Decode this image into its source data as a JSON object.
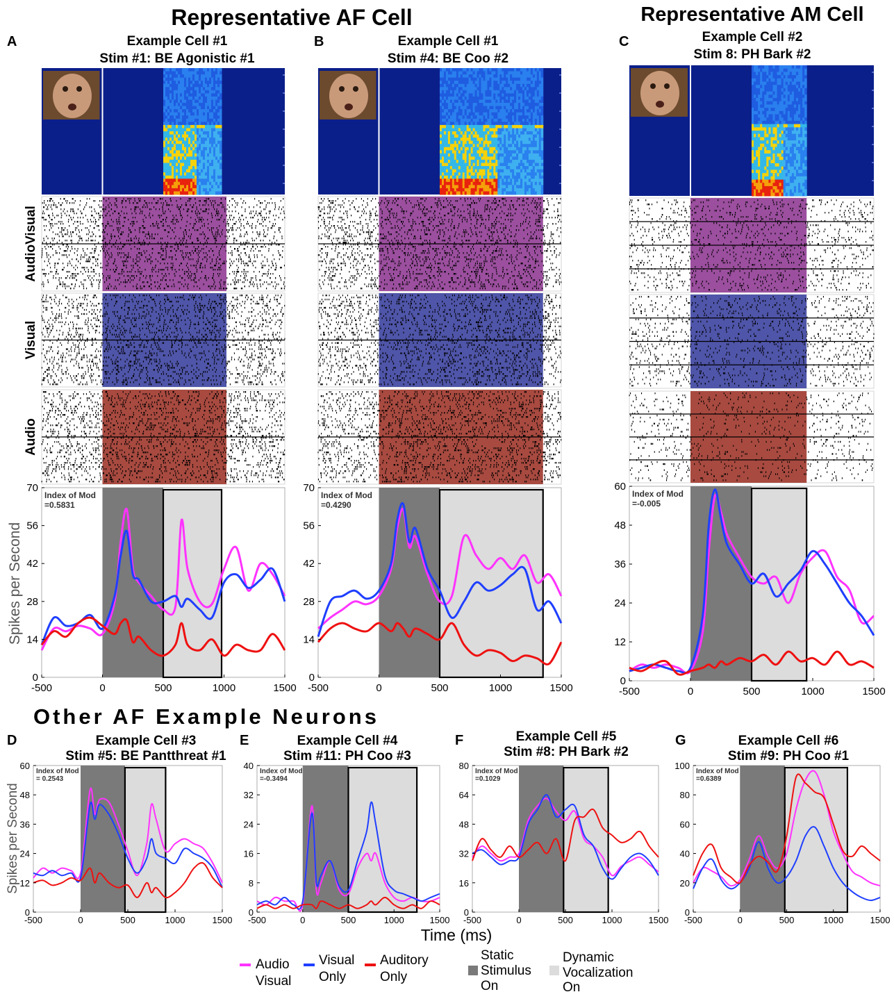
{
  "headers": {
    "af": "Representative AF Cell",
    "am": "Representative AM Cell",
    "other": "Other AF Example Neurons"
  },
  "row_labels": [
    "AudioVisual",
    "Visual",
    "Audio"
  ],
  "ylabel": "Spikes per Second",
  "xlabel": "Time (ms)",
  "colors": {
    "audiovisual": "#ff33ff",
    "visual": "#1f3fff",
    "audio": "#ee1111",
    "static": "#7a7a7a",
    "dynamic": "#dcdcdc",
    "spectro_bg": "#0b1f8a",
    "raster_av": "#9b4f9e",
    "raster_v": "#4f55a8",
    "raster_a": "#a84a40"
  },
  "legend": {
    "audiovisual": [
      "Audio",
      "Visual"
    ],
    "visual": [
      "Visual",
      "Only"
    ],
    "audio": [
      "Auditory",
      "Only"
    ],
    "static": [
      "Static",
      "Stimulus",
      "On"
    ],
    "dynamic": [
      "Dynamic",
      "Vocalization",
      "On"
    ]
  },
  "chart_data": [
    {
      "panel": "A",
      "type": "line",
      "title": [
        "Example Cell #1",
        "Stim #1: BE Agonistic #1"
      ],
      "index_label": "Index of Mod",
      "index_value": "=0.5831",
      "xlim": [
        -500,
        1500
      ],
      "ylim": [
        0,
        70
      ],
      "xticks": [
        -500,
        0,
        500,
        1000,
        1500
      ],
      "yticks": [
        0,
        14,
        28,
        42,
        56,
        70
      ],
      "static_on": [
        0,
        500
      ],
      "dynamic_on": [
        500,
        980
      ],
      "x": [
        -500,
        -400,
        -300,
        -200,
        -100,
        0,
        100,
        150,
        200,
        250,
        300,
        400,
        500,
        600,
        650,
        700,
        800,
        900,
        1000,
        1100,
        1200,
        1300,
        1400,
        1500
      ],
      "series": [
        {
          "key": "audiovisual",
          "values": [
            10,
            18,
            17,
            19,
            18,
            16,
            28,
            50,
            62,
            40,
            35,
            30,
            25,
            26,
            58,
            40,
            28,
            27,
            40,
            48,
            32,
            42,
            38,
            30
          ]
        },
        {
          "key": "visual",
          "values": [
            12,
            22,
            19,
            20,
            23,
            18,
            30,
            45,
            54,
            38,
            36,
            28,
            28,
            30,
            26,
            29,
            25,
            22,
            35,
            38,
            33,
            36,
            40,
            28
          ]
        },
        {
          "key": "audio",
          "values": [
            12,
            17,
            15,
            20,
            22,
            19,
            16,
            20,
            21,
            13,
            15,
            10,
            8,
            12,
            20,
            12,
            10,
            14,
            8,
            12,
            10,
            10,
            16,
            10
          ]
        }
      ]
    },
    {
      "panel": "B",
      "type": "line",
      "title": [
        "Example Cell #1",
        "Stim #4: BE Coo #2"
      ],
      "index_label": "Index of Mod",
      "index_value": "=0.4290",
      "xlim": [
        -500,
        1500
      ],
      "ylim": [
        0,
        70
      ],
      "xticks": [
        -500,
        0,
        500,
        1000,
        1500
      ],
      "yticks": [
        0,
        14,
        28,
        42,
        56,
        70
      ],
      "static_on": [
        0,
        500
      ],
      "dynamic_on": [
        500,
        1350
      ],
      "x": [
        -500,
        -400,
        -300,
        -200,
        -100,
        0,
        100,
        150,
        200,
        250,
        300,
        400,
        500,
        600,
        700,
        800,
        900,
        1000,
        1100,
        1200,
        1300,
        1400,
        1500
      ],
      "series": [
        {
          "key": "audiovisual",
          "values": [
            18,
            22,
            25,
            28,
            27,
            30,
            40,
            55,
            62,
            48,
            52,
            38,
            28,
            30,
            52,
            45,
            40,
            44,
            40,
            45,
            35,
            38,
            30
          ]
        },
        {
          "key": "visual",
          "values": [
            15,
            28,
            30,
            32,
            29,
            32,
            42,
            58,
            64,
            50,
            55,
            40,
            32,
            22,
            28,
            35,
            32,
            34,
            38,
            40,
            25,
            28,
            20
          ]
        },
        {
          "key": "audio",
          "values": [
            13,
            18,
            20,
            18,
            17,
            20,
            17,
            20,
            18,
            15,
            18,
            16,
            14,
            20,
            12,
            8,
            10,
            9,
            6,
            8,
            7,
            5,
            13
          ]
        }
      ]
    },
    {
      "panel": "C",
      "type": "line",
      "title": [
        "Example Cell #2",
        "Stim 8: PH Bark #2"
      ],
      "index_label": "Index of Mod",
      "index_value": "=-0.005",
      "xlim": [
        -500,
        1500
      ],
      "ylim": [
        0,
        60
      ],
      "xticks": [
        -500,
        0,
        500,
        1000,
        1500
      ],
      "yticks": [
        0,
        12,
        24,
        36,
        48,
        60
      ],
      "static_on": [
        0,
        500
      ],
      "dynamic_on": [
        500,
        950
      ],
      "x": [
        -500,
        -400,
        -300,
        -200,
        -100,
        0,
        100,
        150,
        200,
        250,
        300,
        400,
        500,
        600,
        700,
        800,
        900,
        1000,
        1100,
        1200,
        1300,
        1400,
        1500
      ],
      "series": [
        {
          "key": "audiovisual",
          "values": [
            3,
            5,
            4,
            5,
            4,
            3,
            15,
            40,
            57,
            52,
            45,
            38,
            32,
            30,
            32,
            24,
            33,
            38,
            40,
            32,
            28,
            18,
            20
          ]
        },
        {
          "key": "visual",
          "values": [
            3,
            4,
            5,
            4,
            3,
            4,
            20,
            48,
            59,
            50,
            42,
            36,
            30,
            33,
            26,
            30,
            34,
            40,
            36,
            30,
            24,
            20,
            14
          ]
        },
        {
          "key": "audio",
          "values": [
            4,
            3,
            5,
            6,
            2,
            3,
            4,
            5,
            4,
            6,
            5,
            7,
            6,
            8,
            5,
            9,
            6,
            7,
            5,
            9,
            5,
            6,
            4
          ]
        }
      ]
    },
    {
      "panel": "D",
      "type": "line",
      "title": [
        "Example Cell #3",
        "Stim #5: BE Pantthreat #1"
      ],
      "index_label": "Index of Mod",
      "index_value": "= 0.2543",
      "xlim": [
        -500,
        1500
      ],
      "ylim": [
        0,
        60
      ],
      "xticks": [
        -500,
        0,
        500,
        1000,
        1500
      ],
      "yticks": [
        0,
        12,
        24,
        36,
        48,
        60
      ],
      "static_on": [
        0,
        470
      ],
      "dynamic_on": [
        470,
        900
      ],
      "x": [
        -500,
        -400,
        -300,
        -200,
        -100,
        0,
        100,
        150,
        200,
        300,
        400,
        500,
        600,
        700,
        750,
        800,
        900,
        1000,
        1100,
        1200,
        1300,
        1400,
        1500
      ],
      "series": [
        {
          "key": "audiovisual",
          "values": [
            14,
            18,
            16,
            18,
            17,
            16,
            50,
            40,
            46,
            45,
            36,
            25,
            15,
            28,
            44,
            38,
            25,
            28,
            30,
            28,
            26,
            20,
            12
          ]
        },
        {
          "key": "visual",
          "values": [
            16,
            15,
            17,
            15,
            16,
            14,
            44,
            38,
            44,
            40,
            32,
            22,
            16,
            22,
            30,
            24,
            22,
            20,
            26,
            24,
            22,
            18,
            10
          ]
        },
        {
          "key": "audio",
          "values": [
            12,
            13,
            11,
            12,
            14,
            13,
            18,
            12,
            16,
            12,
            10,
            11,
            6,
            12,
            8,
            10,
            6,
            8,
            12,
            18,
            20,
            14,
            10
          ]
        }
      ]
    },
    {
      "panel": "E",
      "type": "line",
      "title": [
        "Example Cell #4",
        "Stim #11:  PH Coo #3"
      ],
      "index_label": "Index of Mod",
      "index_value": "=-0.3494",
      "xlim": [
        -500,
        1500
      ],
      "ylim": [
        0,
        40
      ],
      "xticks": [
        -500,
        0,
        500,
        1000,
        1500
      ],
      "yticks": [
        0,
        8,
        16,
        24,
        32,
        40
      ],
      "static_on": [
        0,
        500
      ],
      "dynamic_on": [
        500,
        1250
      ],
      "x": [
        -500,
        -400,
        -300,
        -200,
        -100,
        0,
        100,
        150,
        200,
        300,
        400,
        500,
        600,
        700,
        750,
        800,
        900,
        1000,
        1100,
        1200,
        1300,
        1400,
        1500
      ],
      "series": [
        {
          "key": "audiovisual",
          "values": [
            3,
            2,
            4,
            3,
            3,
            2,
            29,
            6,
            8,
            14,
            6,
            5,
            12,
            16,
            14,
            16,
            8,
            4,
            3,
            4,
            3,
            3,
            4
          ]
        },
        {
          "key": "visual",
          "values": [
            2,
            3,
            2,
            4,
            2,
            3,
            27,
            8,
            10,
            14,
            7,
            6,
            14,
            22,
            30,
            24,
            10,
            6,
            5,
            4,
            3,
            4,
            5
          ]
        },
        {
          "key": "audio",
          "values": [
            1,
            2,
            1,
            2,
            1,
            2,
            2,
            1,
            3,
            2,
            1,
            2,
            1,
            2,
            3,
            2,
            4,
            2,
            1,
            2,
            1,
            3,
            2
          ]
        }
      ]
    },
    {
      "panel": "F",
      "type": "line",
      "title": [
        "Example Cell #5",
        "Stim #8: PH Bark #2"
      ],
      "index_label": "Index of Mod",
      "index_value": "=0.1029",
      "xlim": [
        -500,
        1500
      ],
      "ylim": [
        0,
        80
      ],
      "xticks": [
        -500,
        0,
        500,
        1000,
        1500
      ],
      "yticks": [
        0,
        16,
        32,
        48,
        64,
        80
      ],
      "static_on": [
        0,
        480
      ],
      "dynamic_on": [
        480,
        960
      ],
      "x": [
        -500,
        -400,
        -300,
        -200,
        -100,
        0,
        100,
        200,
        300,
        400,
        500,
        600,
        700,
        800,
        900,
        1000,
        1100,
        1200,
        1300,
        1400,
        1500
      ],
      "series": [
        {
          "key": "audiovisual",
          "values": [
            30,
            36,
            32,
            28,
            30,
            32,
            50,
            58,
            62,
            55,
            50,
            55,
            40,
            36,
            30,
            20,
            25,
            28,
            30,
            26,
            22
          ]
        },
        {
          "key": "visual",
          "values": [
            32,
            34,
            30,
            26,
            28,
            30,
            48,
            56,
            64,
            52,
            56,
            58,
            42,
            36,
            24,
            18,
            24,
            30,
            32,
            28,
            20
          ]
        },
        {
          "key": "audio",
          "values": [
            28,
            40,
            34,
            30,
            36,
            30,
            34,
            38,
            32,
            40,
            28,
            50,
            52,
            56,
            46,
            42,
            38,
            40,
            44,
            36,
            30
          ]
        }
      ]
    },
    {
      "panel": "G",
      "type": "line",
      "title": [
        "Example Cell #6",
        "Stim #9: PH Coo #1"
      ],
      "index_label": "Index of Mod",
      "index_value": "=0.6389",
      "xlim": [
        -500,
        1500
      ],
      "ylim": [
        0,
        100
      ],
      "xticks": [
        -500,
        0,
        500,
        1000,
        1500
      ],
      "yticks": [
        0,
        20,
        40,
        60,
        80,
        100
      ],
      "static_on": [
        0,
        480
      ],
      "dynamic_on": [
        480,
        1150
      ],
      "x": [
        -500,
        -400,
        -300,
        -200,
        -100,
        0,
        100,
        200,
        300,
        400,
        500,
        600,
        700,
        800,
        900,
        1000,
        1100,
        1200,
        1300,
        1400,
        1500
      ],
      "series": [
        {
          "key": "audiovisual",
          "values": [
            20,
            30,
            28,
            24,
            18,
            22,
            36,
            52,
            38,
            30,
            40,
            70,
            90,
            96,
            80,
            55,
            40,
            28,
            24,
            20,
            18
          ]
        },
        {
          "key": "visual",
          "values": [
            16,
            30,
            36,
            22,
            16,
            20,
            30,
            48,
            30,
            20,
            24,
            35,
            52,
            58,
            45,
            30,
            20,
            14,
            10,
            8,
            10
          ]
        },
        {
          "key": "audio",
          "values": [
            25,
            40,
            46,
            30,
            24,
            20,
            32,
            38,
            34,
            28,
            52,
            92,
            88,
            82,
            78,
            60,
            42,
            38,
            45,
            40,
            35
          ]
        }
      ]
    }
  ]
}
